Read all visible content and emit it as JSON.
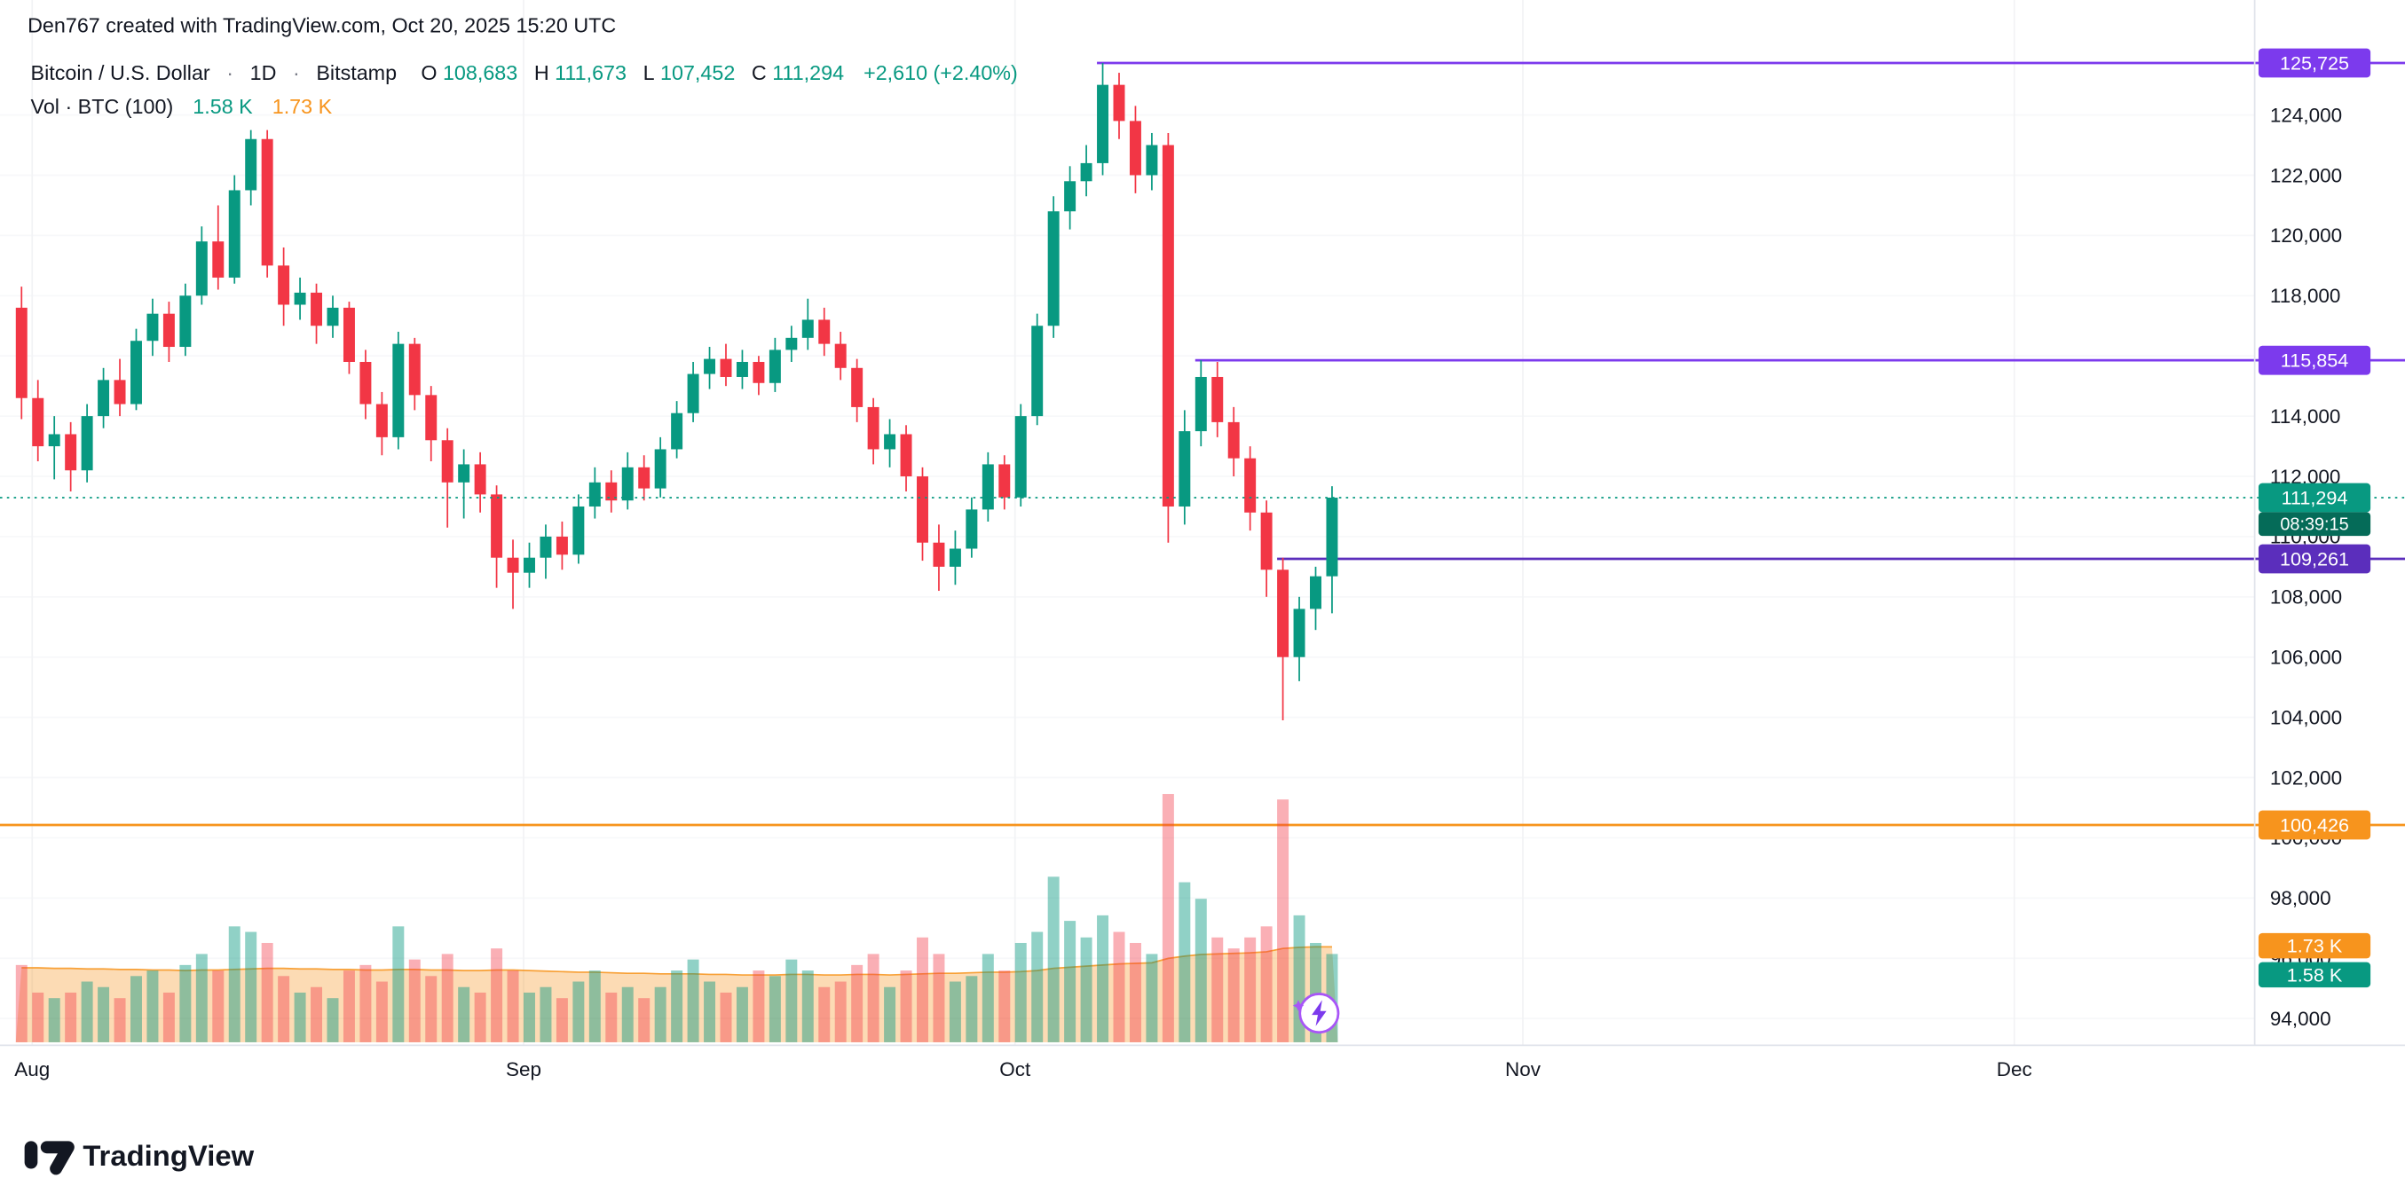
{
  "attribution": "Den767 created with TradingView.com, Oct 20, 2025 15:20 UTC",
  "legend": {
    "symbol": "Bitcoin / U.S. Dollar",
    "sep": "·",
    "interval": "1D",
    "exchange": "Bitstamp",
    "o_label": "O",
    "o_value": "108,683",
    "h_label": "H",
    "h_value": "111,673",
    "l_label": "L",
    "l_value": "107,452",
    "c_label": "C",
    "c_value": "111,294",
    "change": "+2,610 (+2.40%)",
    "vol_label": "Vol · BTC (100)",
    "vol_value": "1.58 K",
    "vol_ma_value": "1.73 K"
  },
  "logo": {
    "text": "TradingView"
  },
  "colors": {
    "up": "#089981",
    "down": "#F23645",
    "vol_up": "rgba(8,153,129,0.45)",
    "vol_down": "rgba(242,54,69,0.40)",
    "vol_ma_fill": "rgba(247,147,26,0.33)",
    "vol_ma_line": "rgba(247,147,26,0.85)",
    "purple": "#7C3AED",
    "purple_dark": "#5B2EBC",
    "orange": "#F7941D",
    "teal": "#089981",
    "countdown_bg": "#056b58",
    "text_dark": "#131722",
    "axis_sep": "#e0e3eb",
    "grid_v": "#f2f3f5",
    "grid_h": "#f7f8fa"
  },
  "chart_data": {
    "type": "candlestick",
    "title": "Bitcoin / U.S. Dollar · 1D · Bitstamp",
    "ylim": [
      93000,
      126500
    ],
    "y_ticks": [
      124000,
      122000,
      120000,
      118000,
      116000,
      114000,
      112000,
      110000,
      108000,
      106000,
      104000,
      102000,
      100000,
      98000,
      96000,
      94000
    ],
    "x_months": [
      {
        "label": "Aug",
        "day": 1
      },
      {
        "label": "Sep",
        "day": 31
      },
      {
        "label": "Oct",
        "day": 61
      },
      {
        "label": "Nov",
        "day": 92
      },
      {
        "label": "Dec",
        "day": 122
      }
    ],
    "candles": [
      [
        117600,
        118300,
        113900,
        114600
      ],
      [
        114600,
        115200,
        112500,
        113000
      ],
      [
        113000,
        114000,
        111900,
        113400
      ],
      [
        113400,
        113800,
        111500,
        112200
      ],
      [
        112200,
        114400,
        111800,
        114000
      ],
      [
        114000,
        115600,
        113600,
        115200
      ],
      [
        115200,
        115900,
        114000,
        114400
      ],
      [
        114400,
        116900,
        114200,
        116500
      ],
      [
        116500,
        117900,
        116000,
        117400
      ],
      [
        117400,
        117800,
        115800,
        116300
      ],
      [
        116300,
        118400,
        116000,
        118000
      ],
      [
        118000,
        120300,
        117700,
        119800
      ],
      [
        119800,
        121000,
        118200,
        118600
      ],
      [
        118600,
        122000,
        118400,
        121500
      ],
      [
        121500,
        123500,
        121000,
        123200
      ],
      [
        123200,
        123500,
        118600,
        119000
      ],
      [
        119000,
        119600,
        117000,
        117700
      ],
      [
        117700,
        118600,
        117200,
        118100
      ],
      [
        118100,
        118400,
        116400,
        117000
      ],
      [
        117000,
        118000,
        116600,
        117600
      ],
      [
        117600,
        117800,
        115400,
        115800
      ],
      [
        115800,
        116200,
        113900,
        114400
      ],
      [
        114400,
        114800,
        112700,
        113300
      ],
      [
        113300,
        116800,
        112900,
        116400
      ],
      [
        116400,
        116600,
        114200,
        114700
      ],
      [
        114700,
        115000,
        112500,
        113200
      ],
      [
        113200,
        113600,
        110300,
        111800
      ],
      [
        111800,
        112900,
        110600,
        112400
      ],
      [
        112400,
        112800,
        110800,
        111400
      ],
      [
        111400,
        111700,
        108300,
        109300
      ],
      [
        109300,
        109900,
        107600,
        108800
      ],
      [
        108800,
        109800,
        108300,
        109300
      ],
      [
        109300,
        110400,
        108600,
        110000
      ],
      [
        110000,
        110500,
        108900,
        109400
      ],
      [
        109400,
        111400,
        109100,
        111000
      ],
      [
        111000,
        112300,
        110600,
        111800
      ],
      [
        111800,
        112200,
        110800,
        111200
      ],
      [
        111200,
        112800,
        110900,
        112300
      ],
      [
        112300,
        112700,
        111200,
        111600
      ],
      [
        111600,
        113300,
        111300,
        112900
      ],
      [
        112900,
        114500,
        112600,
        114100
      ],
      [
        114100,
        115800,
        113800,
        115400
      ],
      [
        115400,
        116300,
        114900,
        115900
      ],
      [
        115900,
        116400,
        115000,
        115300
      ],
      [
        115300,
        116200,
        114900,
        115800
      ],
      [
        115800,
        116000,
        114700,
        115100
      ],
      [
        115100,
        116600,
        114800,
        116200
      ],
      [
        116200,
        117000,
        115800,
        116600
      ],
      [
        116600,
        117900,
        116200,
        117200
      ],
      [
        117200,
        117600,
        116000,
        116400
      ],
      [
        116400,
        116800,
        115200,
        115600
      ],
      [
        115600,
        115900,
        113800,
        114300
      ],
      [
        114300,
        114600,
        112400,
        112900
      ],
      [
        112900,
        113900,
        112300,
        113400
      ],
      [
        113400,
        113700,
        111500,
        112000
      ],
      [
        112000,
        112300,
        109200,
        109800
      ],
      [
        109800,
        110400,
        108200,
        109000
      ],
      [
        109000,
        110200,
        108400,
        109600
      ],
      [
        109600,
        111300,
        109300,
        110900
      ],
      [
        110900,
        112800,
        110500,
        112400
      ],
      [
        112400,
        112700,
        110900,
        111300
      ],
      [
        111300,
        114400,
        111000,
        114000
      ],
      [
        114000,
        117400,
        113700,
        117000
      ],
      [
        117000,
        121300,
        116600,
        120800
      ],
      [
        120800,
        122300,
        120200,
        121800
      ],
      [
        121800,
        123000,
        121300,
        122400
      ],
      [
        122400,
        125725,
        122000,
        125000
      ],
      [
        125000,
        125400,
        123200,
        123800
      ],
      [
        123800,
        124300,
        121400,
        122000
      ],
      [
        122000,
        123400,
        121500,
        123000
      ],
      [
        123000,
        123400,
        109800,
        111000
      ],
      [
        111000,
        114200,
        110400,
        113500
      ],
      [
        113500,
        115854,
        113000,
        115300
      ],
      [
        115300,
        115800,
        113300,
        113800
      ],
      [
        113800,
        114300,
        112000,
        112600
      ],
      [
        112600,
        113000,
        110200,
        110800
      ],
      [
        110800,
        111200,
        108000,
        108900
      ],
      [
        108900,
        109300,
        103900,
        106000
      ],
      [
        106000,
        108000,
        105200,
        107600
      ],
      [
        107600,
        109000,
        106900,
        108683
      ],
      [
        108683,
        111673,
        107452,
        111294
      ]
    ],
    "volumes": [
      1.4,
      0.9,
      0.8,
      0.9,
      1.1,
      1.0,
      0.8,
      1.2,
      1.3,
      0.9,
      1.4,
      1.6,
      1.3,
      2.1,
      2.0,
      1.8,
      1.2,
      0.9,
      1.0,
      0.8,
      1.3,
      1.4,
      1.1,
      2.1,
      1.5,
      1.2,
      1.6,
      1.0,
      0.9,
      1.7,
      1.3,
      0.9,
      1.0,
      0.8,
      1.1,
      1.3,
      0.9,
      1.0,
      0.8,
      1.0,
      1.3,
      1.5,
      1.1,
      0.9,
      1.0,
      1.3,
      1.2,
      1.5,
      1.3,
      1.0,
      1.1,
      1.4,
      1.6,
      1.0,
      1.3,
      1.9,
      1.6,
      1.1,
      1.2,
      1.6,
      1.3,
      1.8,
      2.0,
      3.0,
      2.2,
      1.9,
      2.3,
      2.0,
      1.8,
      1.6,
      4.5,
      2.9,
      2.6,
      1.9,
      1.7,
      1.9,
      2.1,
      4.4,
      2.3,
      1.8,
      1.6
    ],
    "vol_ma": [
      1.35,
      1.35,
      1.34,
      1.34,
      1.33,
      1.33,
      1.32,
      1.32,
      1.31,
      1.31,
      1.3,
      1.31,
      1.31,
      1.32,
      1.33,
      1.34,
      1.34,
      1.33,
      1.33,
      1.32,
      1.32,
      1.31,
      1.31,
      1.32,
      1.32,
      1.31,
      1.31,
      1.3,
      1.3,
      1.31,
      1.31,
      1.3,
      1.29,
      1.28,
      1.27,
      1.27,
      1.26,
      1.25,
      1.25,
      1.24,
      1.24,
      1.24,
      1.23,
      1.23,
      1.22,
      1.22,
      1.22,
      1.23,
      1.23,
      1.22,
      1.22,
      1.23,
      1.23,
      1.22,
      1.23,
      1.24,
      1.25,
      1.25,
      1.26,
      1.27,
      1.27,
      1.28,
      1.3,
      1.34,
      1.36,
      1.38,
      1.4,
      1.42,
      1.43,
      1.44,
      1.52,
      1.56,
      1.59,
      1.6,
      1.61,
      1.62,
      1.64,
      1.7,
      1.72,
      1.73,
      1.73
    ],
    "price_lines": [
      {
        "price": 125725,
        "start_day": 66,
        "color_key": "purple"
      },
      {
        "price": 115854,
        "start_day": 72,
        "color_key": "purple"
      },
      {
        "price": 109261,
        "start_day": 77,
        "color_key": "purple_dark"
      },
      {
        "price": 100426,
        "start_day": -1,
        "color_key": "orange"
      }
    ],
    "current_price": {
      "value": 111294,
      "label": "111,294",
      "countdown": "08:39:15"
    },
    "badges": [
      {
        "label": "125,725",
        "price": 125725,
        "color_key": "purple"
      },
      {
        "label": "115,854",
        "price": 115854,
        "color_key": "purple"
      },
      {
        "label": "109,261",
        "price": 109261,
        "color_key": "purple_dark"
      },
      {
        "label": "100,426",
        "price": 100426,
        "color_key": "orange"
      },
      {
        "label": "1.73 K",
        "y": 617,
        "color_key": "orange"
      },
      {
        "label": "1.58 K",
        "y": 636,
        "color_key": "teal"
      }
    ]
  }
}
